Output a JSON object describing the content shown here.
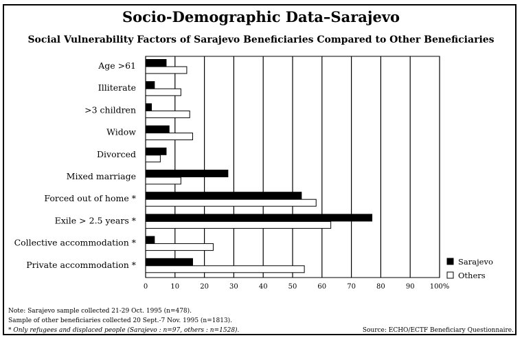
{
  "header": {
    "title": "Socio-Demographic Data–Sarajevo",
    "subtitle": "Social Vulnerability Factors of Sarajevo Beneficiaries Compared to Other Beneficiaries"
  },
  "chart_data": {
    "type": "bar",
    "orientation": "horizontal",
    "categories": [
      "Age >61",
      "Illiterate",
      ">3 children",
      "Widow",
      "Divorced",
      "Mixed marriage",
      "Forced out of home *",
      "Exile > 2.5 years *",
      "Collective accommodation *",
      "Private accommodation *"
    ],
    "series": [
      {
        "name": "Sarajevo",
        "color": "#000000",
        "values": [
          7,
          3,
          2,
          8,
          7,
          28,
          53,
          77,
          3,
          16
        ]
      },
      {
        "name": "Others",
        "color": "#ffffff",
        "values": [
          14,
          12,
          15,
          16,
          5,
          12,
          58,
          63,
          23,
          54
        ]
      }
    ],
    "xlim": [
      0,
      100
    ],
    "x_ticks": [
      "0",
      "10",
      "20",
      "30",
      "40",
      "50",
      "60",
      "70",
      "80",
      "90",
      "100%"
    ],
    "grid": true,
    "legend_position": "right"
  },
  "notes": [
    "Note: Sarajevo sample collected 21-29 Oct. 1995 (n=478).",
    "Sample of other beneficiaries collected 20 Sept.-7 Nov. 1995 (n=1813).",
    "* Only refugees and displaced people (Sarajevo : n=97, others : n=1528)."
  ],
  "source": "Source: ECHO/ECTF Beneficiary Questionnaire."
}
